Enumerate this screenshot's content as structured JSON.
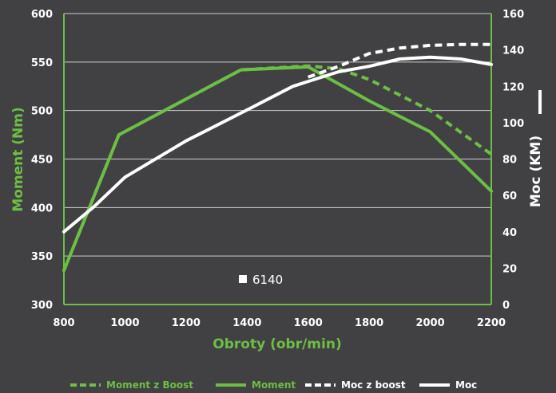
{
  "chart_data": {
    "type": "line",
    "xlabel": "Obroty (obr/min)",
    "ylabel_left": "Moment (Nm)",
    "ylabel_right": "Moc (KM)",
    "x_ticks": [
      "800",
      "1000",
      "1200",
      "1400",
      "1600",
      "1800",
      "2000",
      "2200"
    ],
    "y_left_ticks": [
      "300",
      "350",
      "400",
      "450",
      "500",
      "550",
      "600"
    ],
    "y_right_ticks": [
      "0",
      "20",
      "40",
      "60",
      "80",
      "100",
      "120",
      "140",
      "160"
    ],
    "xlim": [
      800,
      2200
    ],
    "ylim_left": [
      300,
      600
    ],
    "ylim_right": [
      0,
      160
    ],
    "grid": true,
    "legend_position": "bottom",
    "annotation": "6140",
    "colors": {
      "background": "#414042",
      "green": "#6dbe45",
      "white": "#ffffff",
      "grid": "#cfcfcf"
    },
    "series": [
      {
        "name": "Moment z Boost",
        "axis": "left",
        "style": "dashed",
        "color": "#6dbe45",
        "x": [
          800,
          980,
          1380,
          1600,
          1700,
          1800,
          2000,
          2200
        ],
        "values": [
          335,
          475,
          542,
          546,
          543,
          532,
          500,
          455
        ]
      },
      {
        "name": "Moment",
        "axis": "left",
        "style": "solid",
        "color": "#6dbe45",
        "x": [
          800,
          980,
          1380,
          1600,
          1800,
          2000,
          2200
        ],
        "values": [
          335,
          475,
          542,
          545,
          510,
          478,
          417
        ]
      },
      {
        "name": "Moc z boost",
        "axis": "right",
        "style": "dashed",
        "color": "#ffffff",
        "x": [
          1600,
          1700,
          1800,
          1900,
          2000,
          2100,
          2200
        ],
        "values": [
          125,
          131,
          138,
          141,
          142.5,
          143,
          143
        ]
      },
      {
        "name": "Moc",
        "axis": "right",
        "style": "solid",
        "color": "#ffffff",
        "x": [
          800,
          900,
          1000,
          1200,
          1400,
          1550,
          1700,
          1800,
          1900,
          2000,
          2100,
          2200
        ],
        "values": [
          40,
          54,
          70,
          90,
          107,
          120,
          128,
          131,
          135,
          136,
          135,
          132
        ]
      }
    ]
  }
}
